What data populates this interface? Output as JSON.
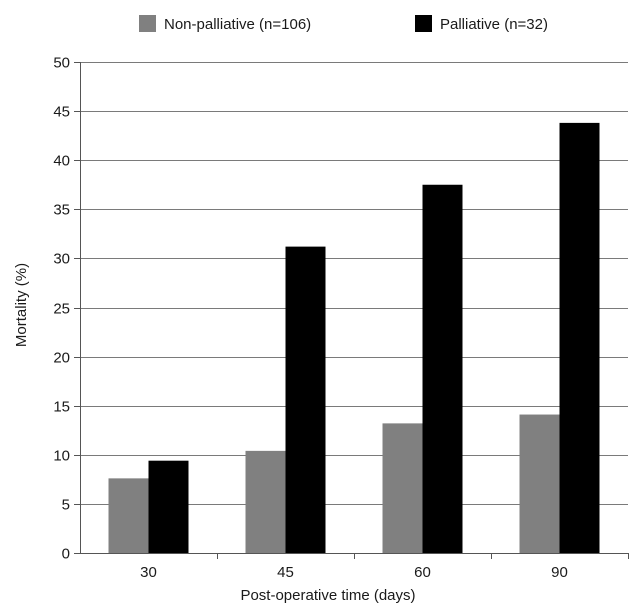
{
  "chart_data": {
    "type": "bar",
    "categories": [
      "30",
      "45",
      "60",
      "90"
    ],
    "series": [
      {
        "name": "Non-palliative (n=106)",
        "color": "#808080",
        "values": [
          7.6,
          10.4,
          13.2,
          14.1
        ]
      },
      {
        "name": "Palliative (n=32)",
        "color": "#000000",
        "values": [
          9.4,
          31.2,
          37.5,
          43.8
        ]
      }
    ],
    "xlabel": "Post-operative time (days)",
    "ylabel": "Mortality (%)",
    "ylim": [
      0,
      50
    ],
    "yticks": [
      0,
      5,
      10,
      15,
      20,
      25,
      30,
      35,
      40,
      45,
      50
    ],
    "grid": "horizontal",
    "legend_position": "top-center"
  }
}
